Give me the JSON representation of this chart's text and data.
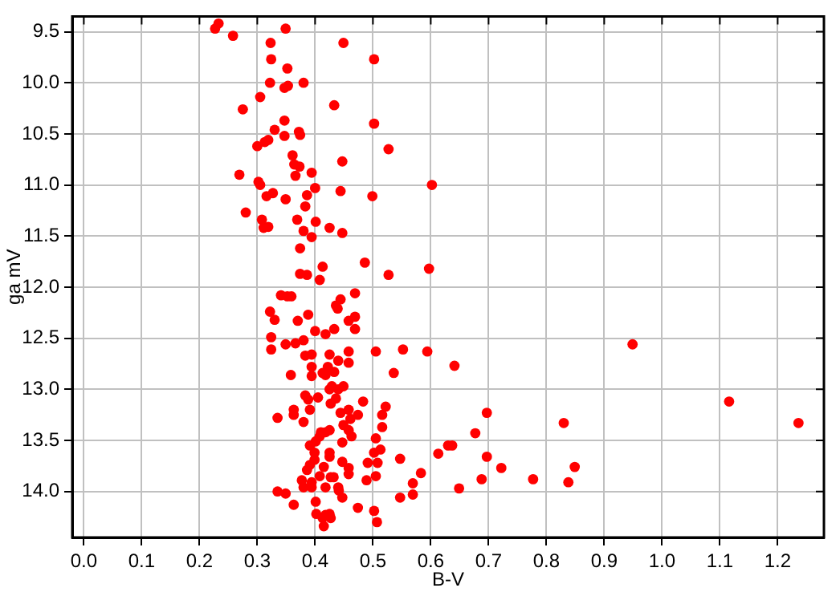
{
  "chart_data": {
    "type": "scatter",
    "xlabel": "B-V",
    "ylabel": "ga mV",
    "marker": "circle",
    "grid": true,
    "legend": false,
    "xlim": [
      -0.02,
      1.28
    ],
    "ylim": [
      14.45,
      9.35
    ],
    "xticks": [
      {
        "value": 0,
        "label": "0.0"
      },
      0.1,
      0.2,
      0.3,
      0.4,
      0.5,
      0.6,
      0.7,
      0.8,
      0.9,
      {
        "value": 1,
        "label": "1.0"
      },
      1.1,
      1.2
    ],
    "yticks": [
      9.5,
      {
        "value": 10,
        "label": "10.0"
      },
      10.5,
      {
        "value": 11,
        "label": "11.0"
      },
      11.5,
      {
        "value": 12,
        "label": "12.0"
      },
      12.5,
      {
        "value": 13,
        "label": "13.0"
      },
      13.5,
      {
        "value": 14,
        "label": "14.0"
      }
    ],
    "series": [
      {
        "color": "#ff0000",
        "x": [
          0.233,
          0.227,
          0.258,
          0.349,
          0.323,
          0.449,
          0.324,
          0.502,
          0.352,
          0.322,
          0.38,
          0.347,
          0.353,
          0.305,
          0.433,
          0.275,
          0.347,
          0.502,
          0.33,
          0.372,
          0.374,
          0.347,
          0.319,
          0.313,
          0.3,
          0.527,
          0.361,
          0.447,
          0.364,
          0.373,
          0.394,
          0.269,
          0.366,
          0.302,
          0.305,
          0.4,
          0.444,
          0.327,
          0.316,
          0.386,
          0.499,
          0.349,
          0.383,
          0.28,
          0.369,
          0.308,
          0.401,
          0.425,
          0.319,
          0.311,
          0.38,
          0.447,
          0.394,
          0.374,
          0.486,
          0.413,
          0.374,
          0.386,
          0.527,
          0.408,
          0.602,
          0.597,
          0.341,
          0.352,
          0.359,
          0.444,
          0.469,
          0.436,
          0.439,
          0.322,
          0.33,
          0.388,
          0.37,
          0.469,
          0.458,
          0.4,
          0.433,
          0.469,
          0.418,
          0.324,
          0.38,
          0.366,
          0.349,
          0.324,
          0.458,
          0.505,
          0.552,
          0.425,
          0.383,
          0.394,
          0.44,
          0.458,
          0.394,
          0.422,
          0.413,
          0.418,
          0.536,
          0.358,
          0.394,
          0.433,
          0.449,
          0.44,
          0.425,
          0.429,
          0.383,
          0.405,
          0.436,
          0.483,
          0.388,
          0.427,
          0.522,
          0.363,
          0.391,
          0.458,
          0.444,
          0.474,
          0.516,
          0.363,
          0.335,
          0.461,
          0.38,
          0.449,
          0.516,
          0.458,
          0.41,
          0.418,
          0.425,
          0.463,
          0.408,
          0.505,
          0.401,
          0.447,
          0.391,
          0.425,
          0.399,
          0.502,
          0.513,
          0.425,
          0.399,
          0.547,
          0.447,
          0.491,
          0.508,
          0.391,
          0.458,
          0.415,
          0.386,
          0.458,
          0.408,
          0.505,
          0.427,
          0.432,
          0.377,
          0.489,
          0.394,
          0.38,
          0.418,
          0.394,
          0.44,
          0.441,
          0.335,
          0.349,
          0.447,
          0.547,
          0.401,
          0.363,
          0.474,
          0.502,
          0.402,
          0.418,
          0.425,
          0.427,
          0.413,
          0.507,
          0.415,
          0.583,
          0.594,
          0.641,
          0.949,
          0.697,
          1.116,
          1.236,
          0.83,
          0.677,
          0.613,
          0.63,
          0.637,
          0.697,
          0.722,
          0.849,
          0.688,
          0.777,
          0.838,
          0.649,
          0.569,
          0.569
        ],
        "values": [
          9.42,
          9.47,
          9.54,
          9.47,
          9.61,
          9.61,
          9.77,
          9.77,
          9.86,
          10.0,
          10.0,
          10.05,
          10.03,
          10.14,
          10.22,
          10.26,
          10.37,
          10.4,
          10.46,
          10.48,
          10.51,
          10.52,
          10.56,
          10.58,
          10.62,
          10.65,
          10.71,
          10.77,
          10.8,
          10.82,
          10.88,
          10.9,
          10.91,
          10.97,
          11.0,
          11.03,
          11.06,
          11.08,
          11.11,
          11.1,
          11.11,
          11.14,
          11.21,
          11.27,
          11.34,
          11.34,
          11.36,
          11.42,
          11.41,
          11.42,
          11.45,
          11.47,
          11.51,
          11.62,
          11.76,
          11.8,
          11.87,
          11.88,
          11.88,
          11.93,
          11.0,
          11.82,
          12.08,
          12.09,
          12.09,
          12.12,
          12.06,
          12.18,
          12.21,
          12.24,
          12.32,
          12.27,
          12.33,
          12.29,
          12.33,
          12.43,
          12.41,
          12.41,
          12.46,
          12.49,
          12.52,
          12.55,
          12.56,
          12.61,
          12.63,
          12.63,
          12.61,
          12.66,
          12.67,
          12.66,
          12.72,
          12.74,
          12.78,
          12.78,
          12.84,
          12.86,
          12.84,
          12.86,
          12.87,
          12.83,
          12.97,
          13.0,
          13.0,
          12.97,
          13.06,
          13.08,
          13.09,
          13.12,
          13.1,
          13.14,
          13.17,
          13.2,
          13.2,
          13.2,
          13.23,
          13.25,
          13.25,
          13.25,
          13.28,
          13.29,
          13.32,
          13.35,
          13.37,
          13.4,
          13.42,
          13.42,
          13.4,
          13.46,
          13.46,
          13.48,
          13.51,
          13.52,
          13.55,
          13.62,
          13.62,
          13.62,
          13.59,
          13.66,
          13.69,
          13.68,
          13.71,
          13.72,
          13.72,
          13.74,
          13.77,
          13.76,
          13.79,
          13.83,
          13.85,
          13.85,
          13.86,
          13.86,
          13.89,
          13.89,
          13.91,
          13.96,
          13.96,
          13.96,
          13.96,
          13.99,
          14.0,
          14.02,
          14.06,
          14.06,
          14.1,
          14.13,
          14.16,
          14.19,
          14.22,
          14.23,
          14.22,
          14.26,
          14.26,
          14.3,
          14.34,
          13.82,
          12.63,
          12.77,
          12.56,
          13.23,
          13.12,
          13.33,
          13.33,
          13.43,
          13.63,
          13.55,
          13.55,
          13.66,
          13.77,
          13.76,
          13.88,
          13.88,
          13.91,
          13.97,
          13.92,
          14.03
        ]
      }
    ]
  }
}
